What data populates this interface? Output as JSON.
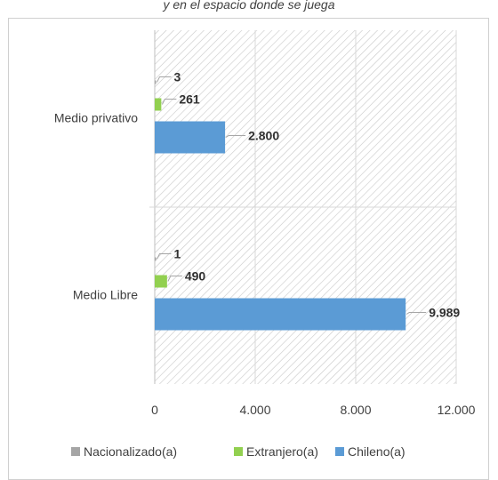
{
  "header": {
    "caption": "y en el espacio donde se juega"
  },
  "chart_data": {
    "type": "bar",
    "orientation": "horizontal",
    "categories": [
      "Medio privativo",
      "Medio Libre"
    ],
    "series": [
      {
        "name": "Nacionalizado(a)",
        "color": "#a5a5a5",
        "values": [
          3,
          1
        ],
        "labels": [
          "3",
          "1"
        ]
      },
      {
        "name": "Extranjero(a)",
        "color": "#92d050",
        "values": [
          261,
          490
        ],
        "labels": [
          "261",
          "490"
        ]
      },
      {
        "name": "Chileno(a)",
        "color": "#5b9bd5",
        "values": [
          2800,
          9989
        ],
        "labels": [
          "2.800",
          "9.989"
        ]
      }
    ],
    "xlim": [
      0,
      12000
    ],
    "xticks": [
      0,
      4000,
      8000,
      12000
    ],
    "xtick_labels": [
      "0",
      "4.000",
      "8.000",
      "12.000"
    ],
    "grid": true,
    "legend_position": "bottom"
  }
}
